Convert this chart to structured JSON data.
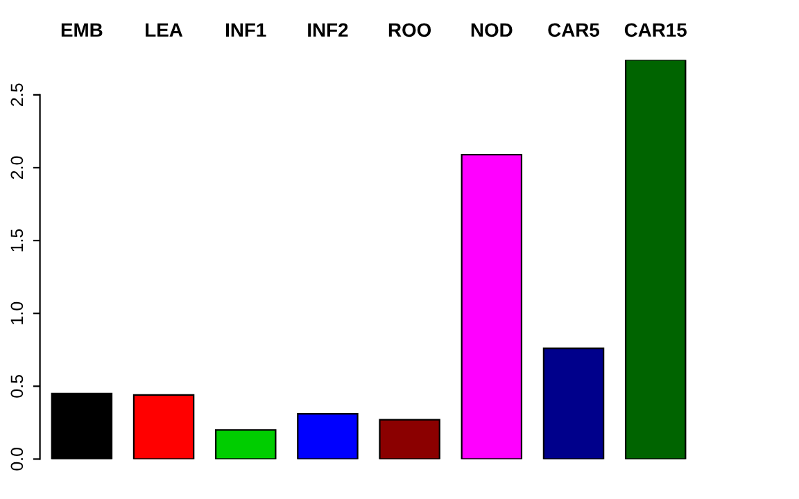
{
  "chart_data": {
    "type": "bar",
    "categories": [
      "EMB",
      "LEA",
      "INF1",
      "INF2",
      "ROO",
      "NOD",
      "CAR5",
      "CAR15"
    ],
    "values": [
      0.45,
      0.44,
      0.2,
      0.31,
      0.27,
      2.09,
      0.76,
      2.74
    ],
    "colors": [
      "#000000",
      "#ff0000",
      "#00cd00",
      "#0000ff",
      "#8b0000",
      "#ff00ff",
      "#00008b",
      "#006400"
    ],
    "ylim": [
      0,
      2.74
    ],
    "yticks": [
      {
        "value": 0,
        "label": "0.0"
      },
      0.5,
      {
        "value": 1,
        "label": "1.0"
      },
      1.5,
      {
        "value": 2,
        "label": "2.0"
      },
      2.5
    ],
    "grid": false,
    "legend": false
  }
}
